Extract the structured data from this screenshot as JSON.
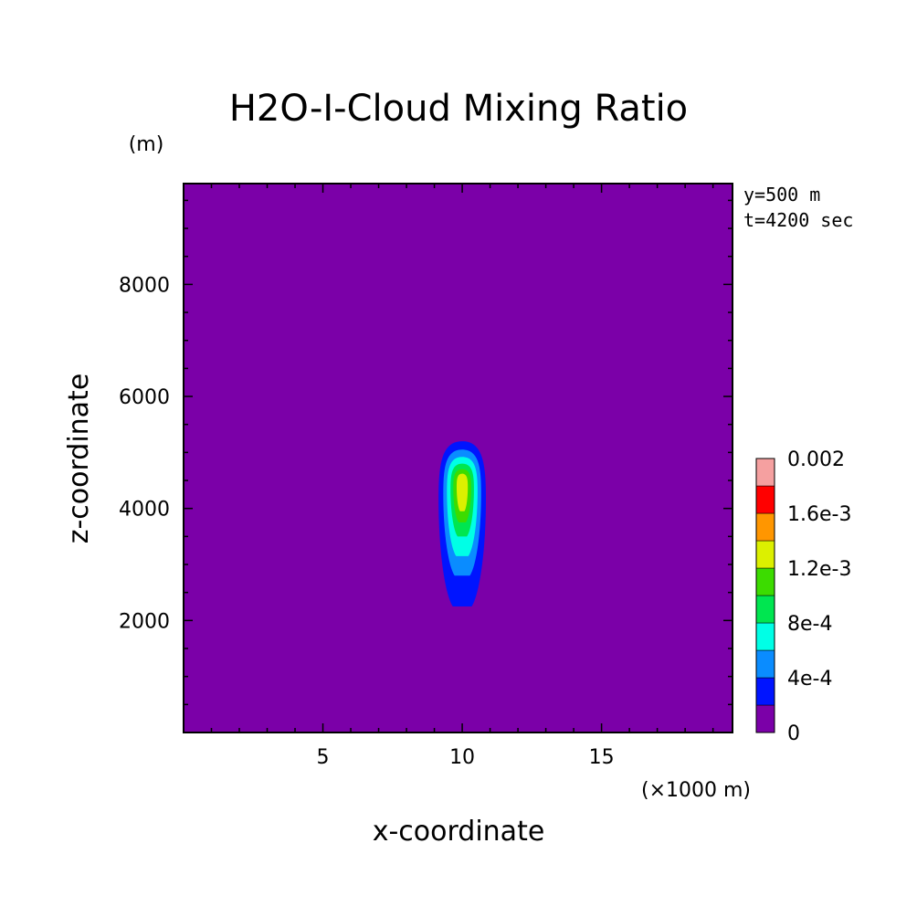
{
  "chart_data": {
    "type": "heatmap",
    "title": "H2O-I-Cloud Mixing Ratio",
    "xlabel": "x-coordinate",
    "ylabel": "z-coordinate",
    "x_unit_label": "(×1000 m)",
    "y_unit_label": "(m)",
    "info_lines": [
      "y=500 m",
      "t=4200 sec"
    ],
    "xlim": [
      0,
      19.7
    ],
    "ylim": [
      0,
      9800
    ],
    "x_ticks": [
      5,
      10,
      15
    ],
    "x_tick_labels": [
      "5",
      "10",
      "15"
    ],
    "y_ticks": [
      2000,
      4000,
      6000,
      8000
    ],
    "y_tick_labels": [
      "2000",
      "4000",
      "6000",
      "8000"
    ],
    "background_color": "#7b00a8",
    "colorbar": {
      "levels": [
        0,
        0.0002,
        0.0004,
        0.0006,
        0.0008,
        0.001,
        0.0012,
        0.0014,
        0.0016,
        0.0018,
        0.002
      ],
      "colors": [
        "#7b00a8",
        "#0014ff",
        "#0a8cff",
        "#00ffe6",
        "#00e650",
        "#3cdc00",
        "#dcf000",
        "#ff9600",
        "#ff0000",
        "#f5a0a0"
      ],
      "tick_labels": [
        "0",
        "4e-4",
        "8e-4",
        "1.2e-3",
        "1.6e-3",
        "0.002"
      ]
    },
    "contours": [
      {
        "level": 0.0002,
        "color": "#0014ff",
        "center_x": 10.0,
        "z_bottom": 2250,
        "z_top": 5200,
        "half_width_km": 0.85
      },
      {
        "level": 0.0004,
        "color": "#0a8cff",
        "center_x": 10.0,
        "z_bottom": 2800,
        "z_top": 5050,
        "half_width_km": 0.68
      },
      {
        "level": 0.0006,
        "color": "#00ffe6",
        "center_x": 10.0,
        "z_bottom": 3150,
        "z_top": 4920,
        "half_width_km": 0.55
      },
      {
        "level": 0.0008,
        "color": "#00e650",
        "center_x": 10.0,
        "z_bottom": 3500,
        "z_top": 4800,
        "half_width_km": 0.42
      },
      {
        "level": 0.001,
        "color": "#3cdc00",
        "center_x": 10.0,
        "z_bottom": 3750,
        "z_top": 4700,
        "half_width_km": 0.32
      },
      {
        "level": 0.0012,
        "color": "#dcf000",
        "center_x": 10.0,
        "z_bottom": 3950,
        "z_top": 4620,
        "half_width_km": 0.2
      }
    ]
  }
}
